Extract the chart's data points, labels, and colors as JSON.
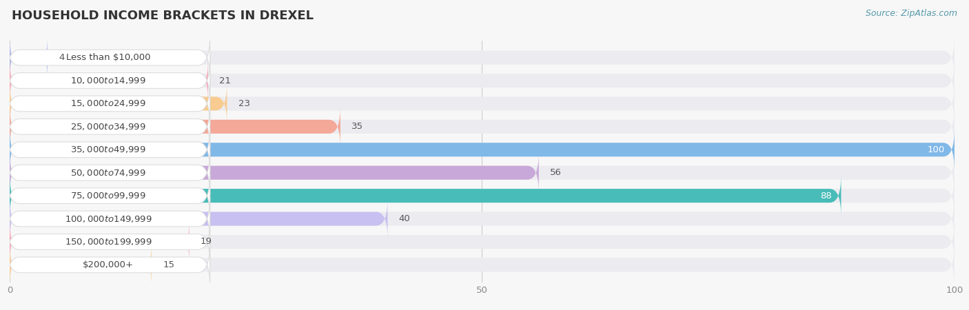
{
  "title": "HOUSEHOLD INCOME BRACKETS IN DREXEL",
  "source": "Source: ZipAtlas.com",
  "categories": [
    "Less than $10,000",
    "$10,000 to $14,999",
    "$15,000 to $24,999",
    "$25,000 to $34,999",
    "$35,000 to $49,999",
    "$50,000 to $74,999",
    "$75,000 to $99,999",
    "$100,000 to $149,999",
    "$150,000 to $199,999",
    "$200,000+"
  ],
  "values": [
    4,
    21,
    23,
    35,
    100,
    56,
    88,
    40,
    19,
    15
  ],
  "bar_colors": [
    "#b0b8e8",
    "#f8aabc",
    "#f8cb90",
    "#f4a898",
    "#80b8e8",
    "#c8a8d8",
    "#48bcb8",
    "#c8c0f0",
    "#f8aabc",
    "#f8cb90"
  ],
  "xlim": [
    0,
    100
  ],
  "xticks": [
    0,
    50,
    100
  ],
  "background_color": "#f7f7f7",
  "bar_bg_color": "#ebebf0",
  "title_fontsize": 13,
  "label_fontsize": 9.5,
  "value_fontsize": 9.5
}
